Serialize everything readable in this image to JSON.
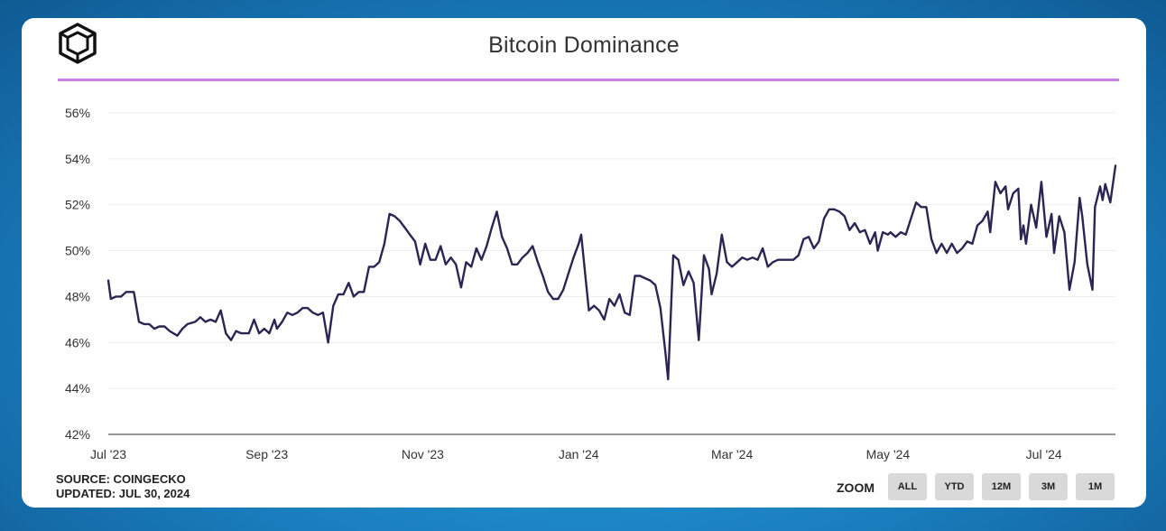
{
  "header": {
    "title": "Bitcoin Dominance",
    "logo_icon": "cube-logo-icon"
  },
  "footer": {
    "source": "SOURCE: COINGECKO",
    "updated": "UPDATED: JUL 30, 2024"
  },
  "zoom": {
    "label": "ZOOM",
    "options": [
      "ALL",
      "YTD",
      "12M",
      "3M",
      "1M"
    ]
  },
  "colors": {
    "line": "#2c2553",
    "divider": "#c97fe6",
    "grid": "#ececec"
  },
  "chart_data": {
    "type": "line",
    "title": "Bitcoin Dominance",
    "xlabel": "",
    "ylabel": "",
    "ylim": [
      42,
      56
    ],
    "ytick_values": [
      42,
      44,
      46,
      48,
      50,
      52,
      54,
      56
    ],
    "yticks": [
      "42%",
      "44%",
      "46%",
      "48%",
      "50%",
      "52%",
      "54%",
      "56%"
    ],
    "xlim": [
      0,
      394
    ],
    "xticks": [
      {
        "label": "Jul '23",
        "day": 0
      },
      {
        "label": "Sep '23",
        "day": 62
      },
      {
        "label": "Nov '23",
        "day": 123
      },
      {
        "label": "Jan '24",
        "day": 184
      },
      {
        "label": "Mar '24",
        "day": 244
      },
      {
        "label": "May '24",
        "day": 305
      },
      {
        "label": "Jul '24",
        "day": 366
      }
    ],
    "series": [
      {
        "name": "Bitcoin Dominance",
        "points": [
          [
            0,
            48.7
          ],
          [
            1,
            47.9
          ],
          [
            3,
            48.0
          ],
          [
            5,
            48.0
          ],
          [
            7,
            48.2
          ],
          [
            10,
            48.2
          ],
          [
            12,
            46.9
          ],
          [
            14,
            46.8
          ],
          [
            16,
            46.8
          ],
          [
            18,
            46.6
          ],
          [
            20,
            46.7
          ],
          [
            22,
            46.7
          ],
          [
            24,
            46.5
          ],
          [
            27,
            46.3
          ],
          [
            29,
            46.6
          ],
          [
            31,
            46.8
          ],
          [
            34,
            46.9
          ],
          [
            36,
            47.1
          ],
          [
            38,
            46.9
          ],
          [
            40,
            47.0
          ],
          [
            42,
            46.9
          ],
          [
            44,
            47.4
          ],
          [
            46,
            46.4
          ],
          [
            48,
            46.1
          ],
          [
            50,
            46.5
          ],
          [
            52,
            46.4
          ],
          [
            55,
            46.4
          ],
          [
            57,
            47.0
          ],
          [
            59,
            46.4
          ],
          [
            61,
            46.6
          ],
          [
            63,
            46.4
          ],
          [
            65,
            47.0
          ],
          [
            66,
            46.6
          ],
          [
            68,
            46.9
          ],
          [
            70,
            47.3
          ],
          [
            72,
            47.2
          ],
          [
            74,
            47.3
          ],
          [
            76,
            47.5
          ],
          [
            78,
            47.5
          ],
          [
            80,
            47.3
          ],
          [
            82,
            47.2
          ],
          [
            84,
            47.3
          ],
          [
            86,
            46.0
          ],
          [
            88,
            47.6
          ],
          [
            90,
            48.1
          ],
          [
            92,
            48.1
          ],
          [
            94,
            48.6
          ],
          [
            96,
            48.0
          ],
          [
            98,
            48.2
          ],
          [
            100,
            48.2
          ],
          [
            102,
            49.3
          ],
          [
            104,
            49.3
          ],
          [
            106,
            49.5
          ],
          [
            108,
            50.3
          ],
          [
            110,
            51.6
          ],
          [
            112,
            51.5
          ],
          [
            114,
            51.3
          ],
          [
            116,
            51.0
          ],
          [
            118,
            50.7
          ],
          [
            120,
            50.4
          ],
          [
            122,
            49.4
          ],
          [
            124,
            50.3
          ],
          [
            126,
            49.6
          ],
          [
            128,
            49.6
          ],
          [
            130,
            50.2
          ],
          [
            132,
            49.4
          ],
          [
            134,
            49.7
          ],
          [
            136,
            49.4
          ],
          [
            138,
            48.4
          ],
          [
            140,
            49.5
          ],
          [
            142,
            49.3
          ],
          [
            144,
            50.1
          ],
          [
            146,
            49.6
          ],
          [
            148,
            50.2
          ],
          [
            150,
            51.0
          ],
          [
            152,
            51.7
          ],
          [
            154,
            50.6
          ],
          [
            156,
            50.1
          ],
          [
            158,
            49.4
          ],
          [
            160,
            49.4
          ],
          [
            162,
            49.7
          ],
          [
            164,
            49.9
          ],
          [
            166,
            50.2
          ],
          [
            168,
            49.5
          ],
          [
            170,
            48.9
          ],
          [
            172,
            48.2
          ],
          [
            174,
            47.9
          ],
          [
            176,
            47.9
          ],
          [
            178,
            48.3
          ],
          [
            180,
            49.0
          ],
          [
            182,
            49.7
          ],
          [
            184,
            50.3
          ],
          [
            185,
            50.7
          ],
          [
            188,
            47.4
          ],
          [
            190,
            47.6
          ],
          [
            192,
            47.4
          ],
          [
            194,
            47.0
          ],
          [
            196,
            47.9
          ],
          [
            198,
            47.6
          ],
          [
            200,
            48.1
          ],
          [
            202,
            47.3
          ],
          [
            204,
            47.2
          ],
          [
            206,
            48.9
          ],
          [
            208,
            48.9
          ],
          [
            210,
            48.8
          ],
          [
            212,
            48.7
          ],
          [
            214,
            48.5
          ],
          [
            216,
            47.5
          ],
          [
            218,
            45.5
          ],
          [
            219,
            44.4
          ],
          [
            221,
            49.8
          ],
          [
            223,
            49.6
          ],
          [
            225,
            48.5
          ],
          [
            227,
            49.1
          ],
          [
            229,
            48.6
          ],
          [
            231,
            46.1
          ],
          [
            233,
            49.8
          ],
          [
            235,
            49.2
          ],
          [
            236,
            48.1
          ],
          [
            238,
            49.0
          ],
          [
            240,
            50.7
          ],
          [
            242,
            49.5
          ],
          [
            244,
            49.3
          ],
          [
            246,
            49.5
          ],
          [
            248,
            49.7
          ],
          [
            250,
            49.6
          ],
          [
            252,
            49.7
          ],
          [
            254,
            49.6
          ],
          [
            256,
            50.1
          ],
          [
            258,
            49.3
          ],
          [
            260,
            49.5
          ],
          [
            262,
            49.6
          ],
          [
            264,
            49.6
          ],
          [
            266,
            49.6
          ],
          [
            268,
            49.6
          ],
          [
            270,
            49.8
          ],
          [
            272,
            50.5
          ],
          [
            274,
            50.6
          ],
          [
            276,
            50.1
          ],
          [
            278,
            50.4
          ],
          [
            280,
            51.4
          ],
          [
            282,
            51.8
          ],
          [
            284,
            51.8
          ],
          [
            286,
            51.7
          ],
          [
            288,
            51.5
          ],
          [
            290,
            50.9
          ],
          [
            292,
            51.2
          ],
          [
            294,
            50.8
          ],
          [
            296,
            50.9
          ],
          [
            298,
            50.3
          ],
          [
            300,
            50.8
          ],
          [
            301,
            50.0
          ],
          [
            303,
            50.8
          ],
          [
            305,
            50.7
          ],
          [
            306,
            50.8
          ],
          [
            308,
            50.6
          ],
          [
            310,
            50.8
          ],
          [
            312,
            50.7
          ],
          [
            314,
            51.4
          ],
          [
            316,
            52.1
          ],
          [
            318,
            51.9
          ],
          [
            320,
            51.9
          ],
          [
            322,
            50.5
          ],
          [
            324,
            49.9
          ],
          [
            326,
            50.3
          ],
          [
            328,
            49.9
          ],
          [
            330,
            50.3
          ],
          [
            332,
            49.9
          ],
          [
            334,
            50.1
          ],
          [
            336,
            50.4
          ],
          [
            338,
            50.3
          ],
          [
            340,
            51.1
          ],
          [
            342,
            51.3
          ],
          [
            344,
            51.7
          ],
          [
            345,
            50.8
          ],
          [
            347,
            53.0
          ],
          [
            349,
            52.5
          ],
          [
            351,
            52.8
          ],
          [
            352,
            51.8
          ],
          [
            354,
            52.5
          ],
          [
            356,
            52.7
          ],
          [
            357,
            50.5
          ],
          [
            358,
            51.1
          ],
          [
            359,
            50.3
          ],
          [
            361,
            52.0
          ],
          [
            363,
            51.0
          ],
          [
            365,
            53.0
          ],
          [
            367,
            50.6
          ],
          [
            369,
            51.6
          ],
          [
            370,
            49.9
          ],
          [
            372,
            51.5
          ],
          [
            374,
            50.8
          ],
          [
            376,
            48.3
          ],
          [
            378,
            49.5
          ],
          [
            380,
            52.3
          ],
          [
            381,
            51.5
          ],
          [
            383,
            49.4
          ],
          [
            385,
            48.3
          ],
          [
            386,
            51.9
          ],
          [
            388,
            52.8
          ],
          [
            389,
            52.2
          ],
          [
            390,
            52.9
          ],
          [
            392,
            52.1
          ],
          [
            394,
            53.7
          ]
        ]
      }
    ]
  }
}
